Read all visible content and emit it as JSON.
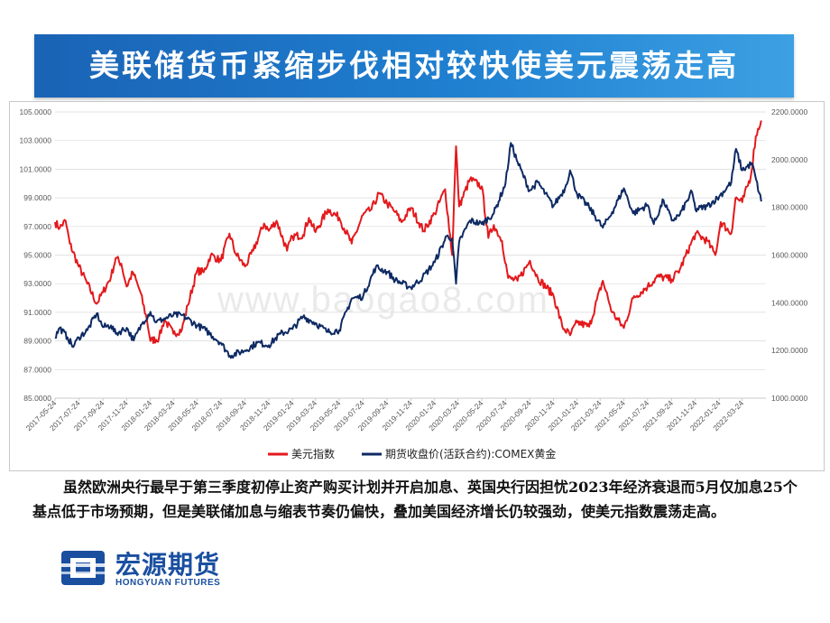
{
  "header": {
    "title": "美联储货币紧缩步伐相对较快使美元震荡走高"
  },
  "chart_data": {
    "type": "line",
    "title": "",
    "left_axis": {
      "min": 85,
      "max": 105,
      "step": 2,
      "tick_labels": [
        "105.0000",
        "103.0000",
        "101.0000",
        "99.0000",
        "97.0000",
        "95.0000",
        "93.0000",
        "91.0000",
        "89.0000",
        "87.0000",
        "85.0000"
      ]
    },
    "right_axis": {
      "min": 1000,
      "max": 2200,
      "step": 200,
      "tick_labels": [
        "2200.0000",
        "2000.0000",
        "1800.0000",
        "1600.0000",
        "1400.0000",
        "1200.0000",
        "1000.0000"
      ]
    },
    "x_tick_labels": [
      "2017-05-24",
      "2017-07-24",
      "2017-09-24",
      "2017-11-24",
      "2018-01-24",
      "2018-03-24",
      "2018-05-24",
      "2018-07-24",
      "2018-09-24",
      "2018-11-24",
      "2019-01-24",
      "2019-03-24",
      "2019-05-24",
      "2019-07-24",
      "2019-09-24",
      "2019-11-24",
      "2020-01-24",
      "2020-03-24",
      "2020-05-24",
      "2020-07-24",
      "2020-09-24",
      "2020-11-24",
      "2021-01-24",
      "2021-03-24",
      "2021-05-24",
      "2021-07-24",
      "2021-09-24",
      "2021-11-24",
      "2022-01-24",
      "2022-03-24"
    ],
    "x_range": [
      "2017-05-24",
      "2022-05-24"
    ],
    "legend_position": "bottom",
    "series": [
      {
        "name": "美元指数",
        "axis": "left",
        "color": "#e3191c",
        "points": [
          [
            "2017-05-24",
            97.3
          ],
          [
            "2017-06-05",
            96.9
          ],
          [
            "2017-06-20",
            97.4
          ],
          [
            "2017-07-01",
            95.8
          ],
          [
            "2017-07-24",
            94.2
          ],
          [
            "2017-08-15",
            93.0
          ],
          [
            "2017-09-08",
            91.6
          ],
          [
            "2017-09-24",
            92.4
          ],
          [
            "2017-10-15",
            93.5
          ],
          [
            "2017-10-27",
            94.8
          ],
          [
            "2017-11-10",
            94.4
          ],
          [
            "2017-11-24",
            92.8
          ],
          [
            "2017-12-10",
            93.8
          ],
          [
            "2017-12-28",
            92.5
          ],
          [
            "2018-01-15",
            90.5
          ],
          [
            "2018-01-24",
            89.0
          ],
          [
            "2018-02-15",
            89.2
          ],
          [
            "2018-03-01",
            90.5
          ],
          [
            "2018-03-24",
            89.5
          ],
          [
            "2018-04-15",
            89.8
          ],
          [
            "2018-04-30",
            91.5
          ],
          [
            "2018-05-24",
            93.9
          ],
          [
            "2018-06-10",
            93.8
          ],
          [
            "2018-06-28",
            95.0
          ],
          [
            "2018-07-24",
            94.6
          ],
          [
            "2018-08-15",
            96.5
          ],
          [
            "2018-08-31",
            95.1
          ],
          [
            "2018-09-24",
            94.2
          ],
          [
            "2018-10-15",
            95.3
          ],
          [
            "2018-11-12",
            97.2
          ],
          [
            "2018-11-24",
            96.7
          ],
          [
            "2018-12-14",
            97.4
          ],
          [
            "2019-01-10",
            95.3
          ],
          [
            "2019-01-24",
            96.3
          ],
          [
            "2019-02-20",
            96.4
          ],
          [
            "2019-03-07",
            97.6
          ],
          [
            "2019-03-24",
            96.6
          ],
          [
            "2019-04-25",
            98.2
          ],
          [
            "2019-05-24",
            97.6
          ],
          [
            "2019-06-25",
            95.8
          ],
          [
            "2019-07-24",
            97.8
          ],
          [
            "2019-08-15",
            98.2
          ],
          [
            "2019-09-03",
            99.3
          ],
          [
            "2019-09-24",
            98.6
          ],
          [
            "2019-10-15",
            98.0
          ],
          [
            "2019-10-31",
            97.3
          ],
          [
            "2019-11-24",
            98.3
          ],
          [
            "2019-12-27",
            96.7
          ],
          [
            "2020-01-24",
            97.9
          ],
          [
            "2020-02-20",
            99.6
          ],
          [
            "2020-03-09",
            95.0
          ],
          [
            "2020-03-19",
            102.6
          ],
          [
            "2020-03-27",
            98.4
          ],
          [
            "2020-04-24",
            100.3
          ],
          [
            "2020-05-24",
            99.8
          ],
          [
            "2020-06-10",
            96.2
          ],
          [
            "2020-06-24",
            97.1
          ],
          [
            "2020-07-15",
            96.0
          ],
          [
            "2020-07-31",
            93.4
          ],
          [
            "2020-08-24",
            93.2
          ],
          [
            "2020-09-25",
            94.6
          ],
          [
            "2020-10-15",
            93.4
          ],
          [
            "2020-11-24",
            92.2
          ],
          [
            "2020-12-17",
            90.0
          ],
          [
            "2021-01-06",
            89.4
          ],
          [
            "2021-01-24",
            90.3
          ],
          [
            "2021-02-24",
            90.0
          ],
          [
            "2021-03-31",
            93.2
          ],
          [
            "2021-04-24",
            91.0
          ],
          [
            "2021-05-24",
            89.9
          ],
          [
            "2021-06-17",
            92.0
          ],
          [
            "2021-07-24",
            92.8
          ],
          [
            "2021-08-20",
            93.5
          ],
          [
            "2021-09-24",
            93.3
          ],
          [
            "2021-10-15",
            94.0
          ],
          [
            "2021-11-24",
            96.5
          ],
          [
            "2021-12-24",
            96.0
          ],
          [
            "2022-01-14",
            95.0
          ],
          [
            "2022-01-28",
            97.3
          ],
          [
            "2022-02-24",
            96.5
          ],
          [
            "2022-03-07",
            99.0
          ],
          [
            "2022-03-24",
            98.7
          ],
          [
            "2022-04-15",
            100.5
          ],
          [
            "2022-04-28",
            103.3
          ],
          [
            "2022-05-12",
            104.4
          ]
        ]
      },
      {
        "name": "期货收盘价(活跃合约):COMEX黄金",
        "axis": "right",
        "color": "#0e2a63",
        "points": [
          [
            "2017-05-24",
            1255
          ],
          [
            "2017-06-05",
            1295
          ],
          [
            "2017-06-25",
            1255
          ],
          [
            "2017-07-10",
            1215
          ],
          [
            "2017-07-24",
            1255
          ],
          [
            "2017-08-15",
            1285
          ],
          [
            "2017-09-08",
            1355
          ],
          [
            "2017-09-24",
            1298
          ],
          [
            "2017-10-15",
            1305
          ],
          [
            "2017-10-27",
            1270
          ],
          [
            "2017-11-24",
            1295
          ],
          [
            "2017-12-12",
            1242
          ],
          [
            "2018-01-05",
            1320
          ],
          [
            "2018-01-24",
            1362
          ],
          [
            "2018-02-08",
            1318
          ],
          [
            "2018-02-24",
            1330
          ],
          [
            "2018-03-24",
            1348
          ],
          [
            "2018-04-15",
            1348
          ],
          [
            "2018-05-24",
            1305
          ],
          [
            "2018-06-15",
            1285
          ],
          [
            "2018-07-24",
            1232
          ],
          [
            "2018-08-16",
            1178
          ],
          [
            "2018-09-24",
            1200
          ],
          [
            "2018-10-26",
            1233
          ],
          [
            "2018-11-24",
            1222
          ],
          [
            "2018-12-24",
            1270
          ],
          [
            "2019-01-24",
            1290
          ],
          [
            "2019-02-20",
            1342
          ],
          [
            "2019-03-24",
            1315
          ],
          [
            "2019-04-24",
            1278
          ],
          [
            "2019-05-24",
            1285
          ],
          [
            "2019-06-25",
            1418
          ],
          [
            "2019-07-24",
            1426
          ],
          [
            "2019-08-26",
            1550
          ],
          [
            "2019-09-24",
            1530
          ],
          [
            "2019-10-15",
            1495
          ],
          [
            "2019-11-24",
            1464
          ],
          [
            "2019-12-24",
            1506
          ],
          [
            "2020-01-24",
            1570
          ],
          [
            "2020-02-24",
            1680
          ],
          [
            "2020-03-09",
            1670
          ],
          [
            "2020-03-19",
            1480
          ],
          [
            "2020-03-27",
            1655
          ],
          [
            "2020-04-24",
            1745
          ],
          [
            "2020-05-24",
            1730
          ],
          [
            "2020-06-24",
            1775
          ],
          [
            "2020-07-24",
            1900
          ],
          [
            "2020-08-07",
            2070
          ],
          [
            "2020-08-24",
            1990
          ],
          [
            "2020-09-24",
            1870
          ],
          [
            "2020-10-15",
            1905
          ],
          [
            "2020-11-24",
            1805
          ],
          [
            "2020-12-24",
            1880
          ],
          [
            "2021-01-06",
            1955
          ],
          [
            "2021-01-24",
            1855
          ],
          [
            "2021-02-24",
            1800
          ],
          [
            "2021-03-31",
            1715
          ],
          [
            "2021-04-24",
            1780
          ],
          [
            "2021-05-24",
            1880
          ],
          [
            "2021-06-17",
            1775
          ],
          [
            "2021-07-24",
            1810
          ],
          [
            "2021-08-09",
            1730
          ],
          [
            "2021-09-03",
            1830
          ],
          [
            "2021-09-24",
            1745
          ],
          [
            "2021-10-15",
            1770
          ],
          [
            "2021-11-15",
            1865
          ],
          [
            "2021-11-24",
            1790
          ],
          [
            "2021-12-24",
            1805
          ],
          [
            "2022-01-24",
            1845
          ],
          [
            "2022-02-24",
            1905
          ],
          [
            "2022-03-08",
            2045
          ],
          [
            "2022-03-24",
            1955
          ],
          [
            "2022-04-18",
            1985
          ],
          [
            "2022-05-12",
            1825
          ]
        ]
      }
    ]
  },
  "watermark": "www.baogao8.com",
  "body_text": "虽然欧洲央行最早于第三季度初停止资产购买计划并开启加息、英国央行因担忧2023年经济衰退而5月仅加息25个基点低于市场预期，但是美联储加息与缩表节奏仍偏快，叠加美国经济增长仍较强劲，使美元指数震荡走高。",
  "logo": {
    "name_cn": "宏源期货",
    "name_en": "HONGYUAN FUTURES",
    "icon": "hongyuan-logo-icon"
  },
  "colors": {
    "banner": "#1f7fd0",
    "usd_line": "#e3191c",
    "gold_line": "#0e2a63",
    "logo": "#1a4fa0"
  }
}
